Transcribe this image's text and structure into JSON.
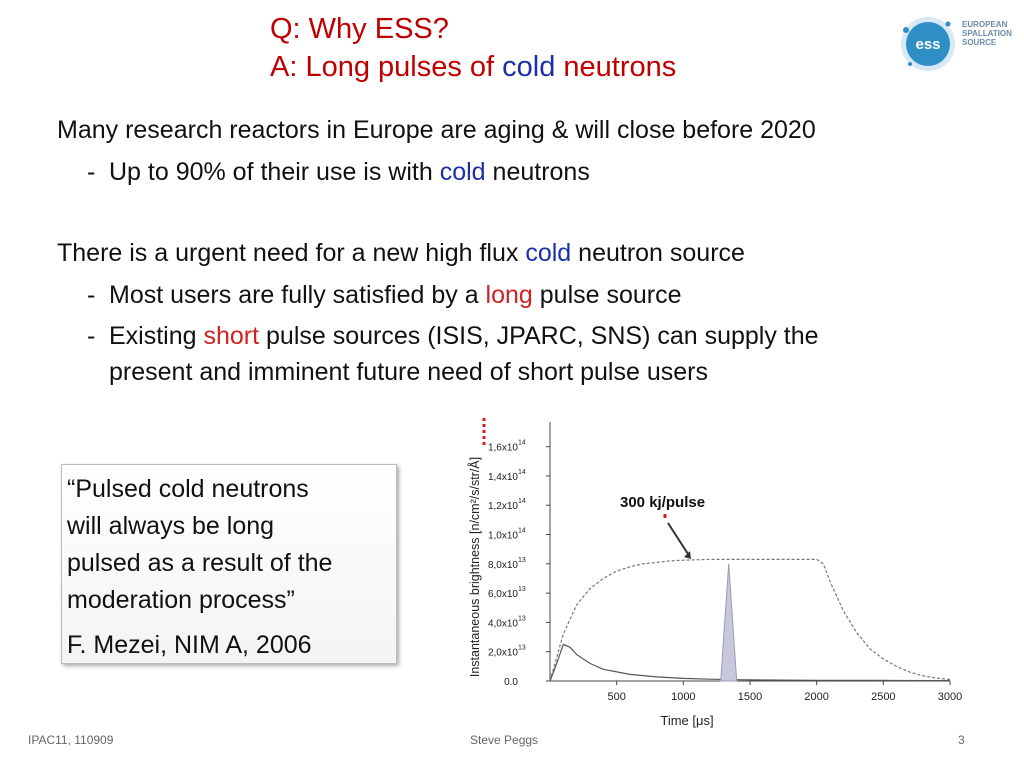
{
  "title": {
    "line1": "Q: Why ESS?",
    "line2_prefix": "A: Long pulses of ",
    "line2_highlight": "cold",
    "line2_suffix": " neutrons"
  },
  "logo": {
    "mark": "ess",
    "line1": "EUROPEAN",
    "line2": "SPALLATION",
    "line3": "SOURCE",
    "color": "#2e8fc5"
  },
  "point1": {
    "text": "Many research reactors in Europe are aging & will close before 2020",
    "sub_prefix": "Up to 90% of their use is with ",
    "sub_highlight": "cold",
    "sub_suffix": " neutrons"
  },
  "point2": {
    "text_prefix": "There is a urgent need for a new high flux ",
    "text_highlight": "cold",
    "text_suffix": " neutron source",
    "sub1_prefix": "Most users are fully satisfied by a ",
    "sub1_highlight": "long",
    "sub1_suffix": " pulse source",
    "sub2_prefix": "Existing ",
    "sub2_highlight": "short",
    "sub2_suffix": " pulse sources (ISIS, JPARC, SNS) can supply the",
    "sub2_line2": "present and imminent future need of short pulse users"
  },
  "quote": {
    "text": "“Pulsed cold neutrons\nwill always be long\npulsed as a result of the\nmoderation process”",
    "citation": "F. Mezei, NIM A, 2006"
  },
  "chart_data": {
    "type": "line",
    "xlabel": "Time [μs]",
    "ylabel": "Instantaneous brightness [n/cm²/s/str/Å]",
    "x_ticks": [
      500,
      1000,
      1500,
      2000,
      2500,
      3000
    ],
    "x_tick_labels": [
      "500",
      "1000",
      "1500",
      "2000",
      "2500",
      "3000"
    ],
    "y_ticks": [
      0,
      20000000000000.0,
      40000000000000.0,
      60000000000000.0,
      80000000000000.0,
      100000000000000.0,
      120000000000000.0,
      140000000000000.0,
      160000000000000.0
    ],
    "y_tick_labels": [
      "0.0",
      "2,0x10",
      "4,0x10",
      "6,0x10",
      "8,0x10",
      "1,0x10",
      "1,2x10",
      "1,4x10",
      "1,6x10"
    ],
    "y_tick_exponents": [
      "",
      "13",
      "13",
      "13",
      "13",
      "14",
      "14",
      "14",
      "14"
    ],
    "xlim": [
      0,
      3000
    ],
    "ylim": [
      0,
      170000000000000.0
    ],
    "annotation": "300 kj/pulse",
    "series": [
      {
        "style": "dashed",
        "color": "#777777",
        "x": [
          0,
          100,
          200,
          300,
          400,
          500,
          600,
          700,
          800,
          900,
          1000,
          1200,
          1400,
          1600,
          1800,
          2000,
          2050,
          2100,
          2200,
          2300,
          2400,
          2500,
          2600,
          2700,
          2800,
          2900,
          3000
        ],
        "y": [
          0,
          32000000000000.0,
          52000000000000.0,
          63000000000000.0,
          70000000000000.0,
          75000000000000.0,
          78000000000000.0,
          80000000000000.0,
          81000000000000.0,
          82000000000000.0,
          82500000000000.0,
          83000000000000.0,
          83000000000000.0,
          83000000000000.0,
          83000000000000.0,
          83000000000000.0,
          80000000000000.0,
          68000000000000.0,
          48000000000000.0,
          33000000000000.0,
          22000000000000.0,
          15000000000000.0,
          10000000000000.0,
          6000000000000.0,
          3500000000000.0,
          2000000000000.0,
          1000000000000.0
        ]
      },
      {
        "style": "solid",
        "color": "#555555",
        "x": [
          0,
          50,
          100,
          150,
          200,
          300,
          400,
          600,
          800,
          1000,
          1200,
          1400,
          1600,
          2000,
          2500,
          3000
        ],
        "y": [
          0,
          12000000000000.0,
          25000000000000.0,
          23000000000000.0,
          18000000000000.0,
          12000000000000.0,
          8000000000000.0,
          4500000000000.0,
          2800000000000.0,
          1800000000000.0,
          1200000000000.0,
          900000000000.0,
          700000000000.0,
          500000000000.0,
          400000000000.0,
          300000000000.0
        ]
      },
      {
        "style": "filled",
        "color": "#c8c8dc",
        "x": [
          1280,
          1340,
          1400
        ],
        "y": [
          0,
          80000000000000.0,
          0
        ]
      }
    ]
  },
  "footer": {
    "left": "IPAC11, 110909",
    "center": "Steve Peggs",
    "right": "3"
  }
}
